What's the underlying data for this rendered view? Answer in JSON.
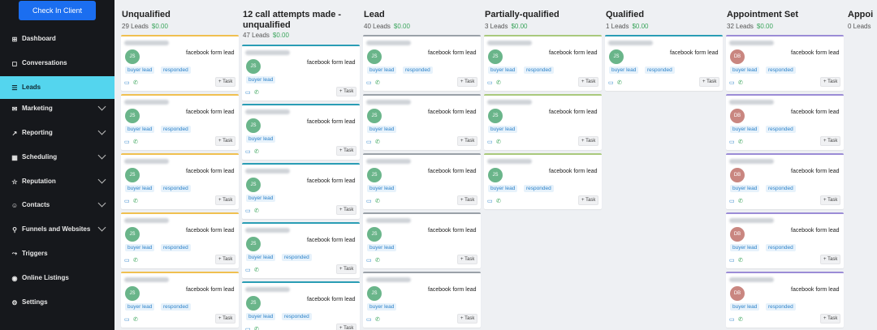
{
  "sidebar": {
    "checkin_label": "Check In Client",
    "items": [
      {
        "label": "Dashboard",
        "icon": "dashboard-icon",
        "glyph": "⊞",
        "expand": false,
        "active": false
      },
      {
        "label": "Conversations",
        "icon": "chat-icon",
        "glyph": "◻",
        "expand": false,
        "active": false
      },
      {
        "label": "Leads",
        "icon": "leads-icon",
        "glyph": "☰",
        "expand": false,
        "active": true
      },
      {
        "label": "Marketing",
        "icon": "mail-icon",
        "glyph": "✉",
        "expand": true,
        "active": false
      },
      {
        "label": "Reporting",
        "icon": "chart-icon",
        "glyph": "↗",
        "expand": true,
        "active": false
      },
      {
        "label": "Scheduling",
        "icon": "calendar-icon",
        "glyph": "▦",
        "expand": true,
        "active": false
      },
      {
        "label": "Reputation",
        "icon": "star-icon",
        "glyph": "☆",
        "expand": true,
        "active": false
      },
      {
        "label": "Contacts",
        "icon": "contacts-icon",
        "glyph": "☺",
        "expand": true,
        "active": false
      },
      {
        "label": "Funnels and Websites",
        "icon": "funnel-icon",
        "glyph": "⚲",
        "expand": true,
        "active": false
      },
      {
        "label": "Triggers",
        "icon": "trigger-icon",
        "glyph": "⤳",
        "expand": false,
        "active": false
      },
      {
        "label": "Online Listings",
        "icon": "listing-icon",
        "glyph": "◉",
        "expand": false,
        "active": false
      },
      {
        "label": "Settings",
        "icon": "gear-icon",
        "glyph": "⚙",
        "expand": false,
        "active": false
      }
    ]
  },
  "card_text": {
    "source": "facebook form lead",
    "tag_buyer": "buyer lead",
    "tag_responded": "responded",
    "task_label": "+ Task"
  },
  "columns": [
    {
      "title": "Unqualified",
      "count": "29 Leads",
      "amount": "$0.00",
      "accent": "#f0c050",
      "wrap": false,
      "cards": [
        {
          "initials": "JS",
          "responded": true
        },
        {
          "initials": "JS",
          "responded": true
        },
        {
          "initials": "JS",
          "responded": true
        },
        {
          "initials": "JS",
          "responded": true
        },
        {
          "initials": "JS",
          "responded": true
        }
      ]
    },
    {
      "title": "12 call attempts made - unqualified",
      "count": "47 Leads",
      "amount": "$0.00",
      "accent": "#2a9db5",
      "wrap": true,
      "cards": [
        {
          "initials": "JS",
          "responded": false
        },
        {
          "initials": "JS",
          "responded": false
        },
        {
          "initials": "JS",
          "responded": false
        },
        {
          "initials": "JS",
          "responded": true
        },
        {
          "initials": "JS",
          "responded": true
        }
      ]
    },
    {
      "title": "Lead",
      "count": "40 Leads",
      "amount": "$0.00",
      "accent": "#9aa1a8",
      "wrap": false,
      "cards": [
        {
          "initials": "JS",
          "responded": true
        },
        {
          "initials": "JS",
          "responded": false
        },
        {
          "initials": "JS",
          "responded": false
        },
        {
          "initials": "JS",
          "responded": false
        },
        {
          "initials": "JS",
          "responded": false
        }
      ]
    },
    {
      "title": "Partially-qualified",
      "count": "3 Leads",
      "amount": "$0.00",
      "accent": "#a9c97c",
      "wrap": false,
      "cards": [
        {
          "initials": "JS",
          "responded": true
        },
        {
          "initials": "JS",
          "responded": false
        },
        {
          "initials": "JS",
          "responded": true
        }
      ]
    },
    {
      "title": "Qualified",
      "count": "1 Leads",
      "amount": "$0.00",
      "accent": "#2a9db5",
      "wrap": false,
      "cards": [
        {
          "initials": "JS",
          "responded": true
        }
      ]
    },
    {
      "title": "Appointment Set",
      "count": "32 Leads",
      "amount": "$0.00",
      "accent": "#9b8cd6",
      "wrap": false,
      "cards": [
        {
          "initials": "DB",
          "responded": true
        },
        {
          "initials": "DB",
          "responded": true
        },
        {
          "initials": "DB",
          "responded": true
        },
        {
          "initials": "DB",
          "responded": true
        },
        {
          "initials": "DB",
          "responded": true
        }
      ]
    },
    {
      "title": "Appoi",
      "count": "0 Leads",
      "amount": "",
      "accent": "#ccc",
      "wrap": false,
      "cards": []
    }
  ]
}
